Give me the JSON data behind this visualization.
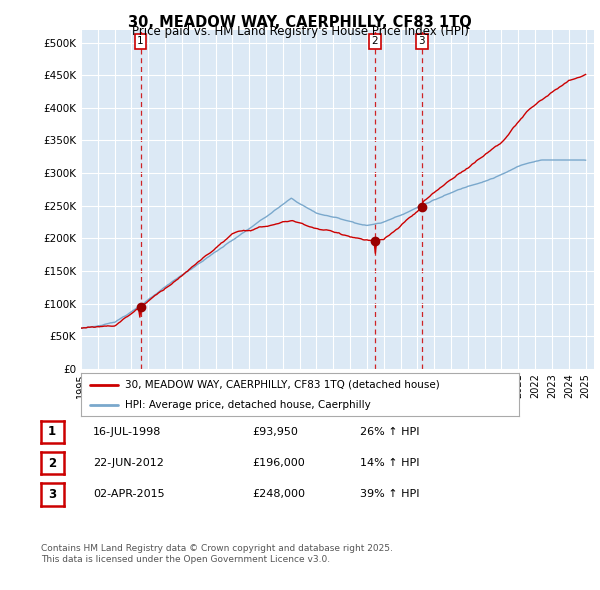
{
  "title": "30, MEADOW WAY, CAERPHILLY, CF83 1TQ",
  "subtitle": "Price paid vs. HM Land Registry's House Price Index (HPI)",
  "xlim_start": 1995.0,
  "xlim_end": 2025.5,
  "ylim": [
    0,
    520000
  ],
  "yticks": [
    0,
    50000,
    100000,
    150000,
    200000,
    250000,
    300000,
    350000,
    400000,
    450000,
    500000
  ],
  "ytick_labels": [
    "£0",
    "£50K",
    "£100K",
    "£150K",
    "£200K",
    "£250K",
    "£300K",
    "£350K",
    "£400K",
    "£450K",
    "£500K"
  ],
  "xticks": [
    1995,
    1996,
    1997,
    1998,
    1999,
    2000,
    2001,
    2002,
    2003,
    2004,
    2005,
    2006,
    2007,
    2008,
    2009,
    2010,
    2011,
    2012,
    2013,
    2014,
    2015,
    2016,
    2017,
    2018,
    2019,
    2020,
    2021,
    2022,
    2023,
    2024,
    2025
  ],
  "property_color": "#cc0000",
  "hpi_color": "#7aa8cc",
  "sale_marker_color": "#990000",
  "vline_color": "#cc0000",
  "plot_bg_color": "#dce9f5",
  "grid_color": "#ffffff",
  "sale1_x": 1998.54,
  "sale1_y": 93950,
  "sale2_x": 2012.47,
  "sale2_y": 196000,
  "sale3_x": 2015.25,
  "sale3_y": 248000,
  "legend_text1": "30, MEADOW WAY, CAERPHILLY, CF83 1TQ (detached house)",
  "legend_text2": "HPI: Average price, detached house, Caerphilly",
  "table_data": [
    {
      "num": "1",
      "date": "16-JUL-1998",
      "price": "£93,950",
      "hpi": "26% ↑ HPI"
    },
    {
      "num": "2",
      "date": "22-JUN-2012",
      "price": "£196,000",
      "hpi": "14% ↑ HPI"
    },
    {
      "num": "3",
      "date": "02-APR-2015",
      "price": "£248,000",
      "hpi": "39% ↑ HPI"
    }
  ],
  "footnote1": "Contains HM Land Registry data © Crown copyright and database right 2025.",
  "footnote2": "This data is licensed under the Open Government Licence v3.0.",
  "background_color": "#ffffff"
}
